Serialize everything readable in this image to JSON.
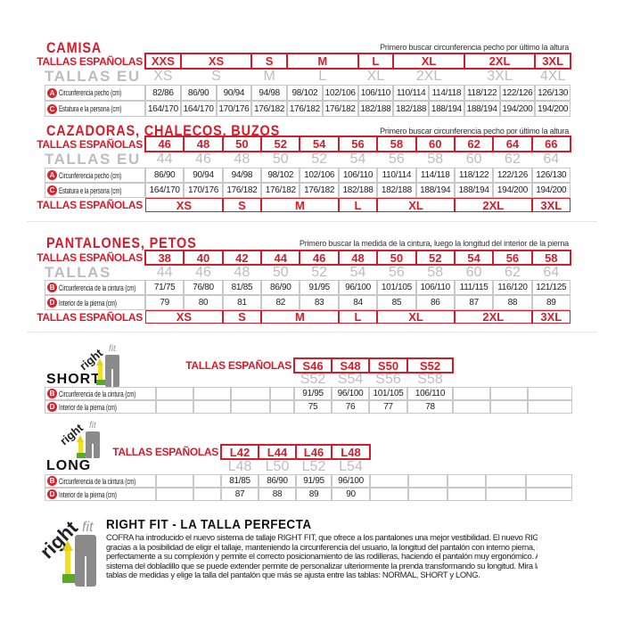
{
  "colors": {
    "accent_red": "#d51c2b",
    "eu_gray": "#bdbdbd",
    "grid_gray": "#c8c8c8"
  },
  "camisa": {
    "title": "CAMISA",
    "note": "Primero buscar circunferencia pecho por último la altura",
    "header_label": "TALLAS ESPAÑOLAS",
    "header": [
      {
        "t": "XXS",
        "s": 1
      },
      {
        "t": "XS",
        "s": 2
      },
      {
        "t": "S",
        "s": 1
      },
      {
        "t": "M",
        "s": 2
      },
      {
        "t": "L",
        "s": 1
      },
      {
        "t": "XL",
        "s": 2
      },
      {
        "t": "2XL",
        "s": 2
      },
      {
        "t": "3XL",
        "s": 1
      }
    ],
    "eu_label": "TALLAS EU",
    "eu": [
      {
        "t": "XS",
        "s": 1
      },
      {
        "t": "S",
        "s": 2
      },
      {
        "t": "M",
        "s": 1
      },
      {
        "t": "L",
        "s": 2
      },
      {
        "t": "XL",
        "s": 1
      },
      {
        "t": "2XL",
        "s": 2
      },
      {
        "t": "3XL",
        "s": 2
      },
      {
        "t": "4XL",
        "s": 1
      }
    ],
    "rows": [
      {
        "letter": "A",
        "label": "Circunferencia pecho (cm)",
        "values": [
          "82/86",
          "86/90",
          "90/94",
          "94/98",
          "98/102",
          "102/106",
          "106/110",
          "110/114",
          "114/118",
          "118/122",
          "122/126",
          "126/130"
        ]
      },
      {
        "letter": "C",
        "label": "Estatura e la persona (cm)",
        "values": [
          "164/170",
          "164/170",
          "170/176",
          "176/182",
          "176/182",
          "176/182",
          "182/188",
          "182/188",
          "188/194",
          "188/194",
          "194/200",
          "194/200"
        ]
      }
    ]
  },
  "cazadoras": {
    "title": "CAZADORAS, CHALECOS, BUZOS",
    "note": "Primero buscar circunferencia pecho por último la altura",
    "header_label": "TALLAS ESPAÑOLAS",
    "header": [
      {
        "t": "46",
        "s": 1
      },
      {
        "t": "48",
        "s": 1
      },
      {
        "t": "50",
        "s": 1
      },
      {
        "t": "52",
        "s": 1
      },
      {
        "t": "54",
        "s": 1
      },
      {
        "t": "56",
        "s": 1
      },
      {
        "t": "58",
        "s": 1
      },
      {
        "t": "60",
        "s": 1
      },
      {
        "t": "62",
        "s": 1
      },
      {
        "t": "64",
        "s": 1
      },
      {
        "t": "66",
        "s": 1
      }
    ],
    "eu_label": "TALLAS EU",
    "eu": [
      {
        "t": "44",
        "s": 1
      },
      {
        "t": "46",
        "s": 1
      },
      {
        "t": "48",
        "s": 1
      },
      {
        "t": "50",
        "s": 1
      },
      {
        "t": "52",
        "s": 1
      },
      {
        "t": "54",
        "s": 1
      },
      {
        "t": "56",
        "s": 1
      },
      {
        "t": "58",
        "s": 1
      },
      {
        "t": "60",
        "s": 1
      },
      {
        "t": "62",
        "s": 1
      },
      {
        "t": "64",
        "s": 1
      }
    ],
    "rows": [
      {
        "letter": "A",
        "label": "Circunferencia pecho (cm)",
        "values": [
          "86/90",
          "90/94",
          "94/98",
          "98/102",
          "102/106",
          "106/110",
          "110/114",
          "114/118",
          "118/122",
          "122/126",
          "126/130"
        ]
      },
      {
        "letter": "C",
        "label": "Estatura e la persona (cm)",
        "values": [
          "164/170",
          "170/176",
          "176/182",
          "176/182",
          "176/182",
          "182/188",
          "182/188",
          "188/194",
          "188/194",
          "194/200",
          "194/200"
        ]
      }
    ],
    "bottom_label": "TALLAS ESPAÑOLAS",
    "bottom": [
      {
        "t": "XS",
        "s": 2
      },
      {
        "t": "S",
        "s": 1
      },
      {
        "t": "M",
        "s": 2
      },
      {
        "t": "L",
        "s": 1
      },
      {
        "t": "XL",
        "s": 2
      },
      {
        "t": "2XL",
        "s": 2
      },
      {
        "t": "3XL",
        "s": 1
      }
    ]
  },
  "pantalones": {
    "title": "PANTALONES, PETOS",
    "note": "Primero buscar la medida de la cintura, luego la longitud del interior de la pierna",
    "header_label": "TALLAS ESPAÑOLAS",
    "header": [
      {
        "t": "38",
        "s": 1
      },
      {
        "t": "40",
        "s": 1
      },
      {
        "t": "42",
        "s": 1
      },
      {
        "t": "44",
        "s": 1
      },
      {
        "t": "46",
        "s": 1
      },
      {
        "t": "48",
        "s": 1
      },
      {
        "t": "50",
        "s": 1
      },
      {
        "t": "52",
        "s": 1
      },
      {
        "t": "54",
        "s": 1
      },
      {
        "t": "56",
        "s": 1
      },
      {
        "t": "58",
        "s": 1
      }
    ],
    "eu_label": "TALLAS",
    "eu": [
      {
        "t": "44",
        "s": 1
      },
      {
        "t": "46",
        "s": 1
      },
      {
        "t": "48",
        "s": 1
      },
      {
        "t": "50",
        "s": 1
      },
      {
        "t": "52",
        "s": 1
      },
      {
        "t": "54",
        "s": 1
      },
      {
        "t": "56",
        "s": 1
      },
      {
        "t": "58",
        "s": 1
      },
      {
        "t": "60",
        "s": 1
      },
      {
        "t": "62",
        "s": 1
      },
      {
        "t": "64",
        "s": 1
      }
    ],
    "rows": [
      {
        "letter": "B",
        "label": "Circunferencia de la cintura (cm)",
        "values": [
          "71/75",
          "76/80",
          "81/85",
          "86/90",
          "91/95",
          "96/100",
          "101/105",
          "106/110",
          "111/115",
          "116/120",
          "121/125"
        ]
      },
      {
        "letter": "D",
        "label": "Interior de la pierna (cm)",
        "values": [
          "79",
          "80",
          "81",
          "82",
          "83",
          "84",
          "85",
          "86",
          "87",
          "88",
          "89"
        ]
      }
    ],
    "bottom_label": "TALLAS ESPAÑOLAS",
    "bottom": [
      {
        "t": "XS",
        "s": 2
      },
      {
        "t": "S",
        "s": 1
      },
      {
        "t": "M",
        "s": 2
      },
      {
        "t": "L",
        "s": 1
      },
      {
        "t": "XL",
        "s": 2
      },
      {
        "t": "2XL",
        "s": 2
      },
      {
        "t": "3XL",
        "s": 1
      }
    ]
  },
  "short": {
    "title": "SHORT",
    "logo_text": "rightfit",
    "header_label": "TALLAS ESPAÑOLAS",
    "header": [
      {
        "t": "S46",
        "s": 1
      },
      {
        "t": "S48",
        "s": 1
      },
      {
        "t": "S50",
        "s": 1
      },
      {
        "t": "S52",
        "s": 1
      }
    ],
    "eu": [
      {
        "t": "S52",
        "s": 1
      },
      {
        "t": "S54",
        "s": 1
      },
      {
        "t": "S56",
        "s": 1
      },
      {
        "t": "S58",
        "s": 1
      }
    ],
    "rows": [
      {
        "letter": "B",
        "label": "Circunferencia de la cintura (cm)",
        "values": [
          "",
          "",
          "",
          "",
          "91/95",
          "96/100",
          "101/105",
          "106/110",
          "",
          "",
          ""
        ]
      },
      {
        "letter": "D",
        "label": "Interior de la pierna (cm)",
        "values": [
          "",
          "",
          "",
          "",
          "75",
          "76",
          "77",
          "78",
          "",
          "",
          ""
        ]
      }
    ]
  },
  "long": {
    "title": "LONG",
    "logo_text": "rightfit",
    "header_label": "TALLAS ESPAÑOLAS",
    "header": [
      {
        "t": "L42",
        "s": 1
      },
      {
        "t": "L44",
        "s": 1
      },
      {
        "t": "L46",
        "s": 1
      },
      {
        "t": "L48",
        "s": 1
      }
    ],
    "eu": [
      {
        "t": "L48",
        "s": 1
      },
      {
        "t": "L50",
        "s": 1
      },
      {
        "t": "L52",
        "s": 1
      },
      {
        "t": "L54",
        "s": 1
      }
    ],
    "rows": [
      {
        "letter": "B",
        "label": "Circunferencia de la cintura (cm)",
        "values": [
          "",
          "",
          "81/85",
          "86/90",
          "91/95",
          "96/100",
          "",
          "",
          "",
          "",
          ""
        ]
      },
      {
        "letter": "D",
        "label": "Interior de la pierna (cm)",
        "values": [
          "",
          "",
          "87",
          "88",
          "89",
          "90",
          "",
          "",
          "",
          "",
          ""
        ]
      }
    ]
  },
  "right_fit": {
    "logo_text": "rightfit",
    "title": "RIGHT FIT - LA TALLA PERFECTA",
    "lines": [
      "COFRA ha introducido el nuevo sistema de tallaje RIGHT FIT, que ofrece a los pantalones una mejor vestibilidad. El nuevo RIGHT FIT,",
      "gracias a la posibilidad de eligir el tallaje, manteniendo la circunferencia del usuario, la longitud del pantalón con interno pierna, se ajusta",
      "perfectamente a su complexión y permite el correcto posicionamiento de las rodilleras, haciendo el pantalón muy ergonómico. Además el",
      "sistema del dobladillo que se puede extender permite de personalizar ulteriormente la prenda transformando su longitud. Mira las nuevas",
      "tablas de medidas y elige la talla del pantalón que más se ajusta entre las tablas: NORMAL, SHORT y LONG."
    ]
  }
}
